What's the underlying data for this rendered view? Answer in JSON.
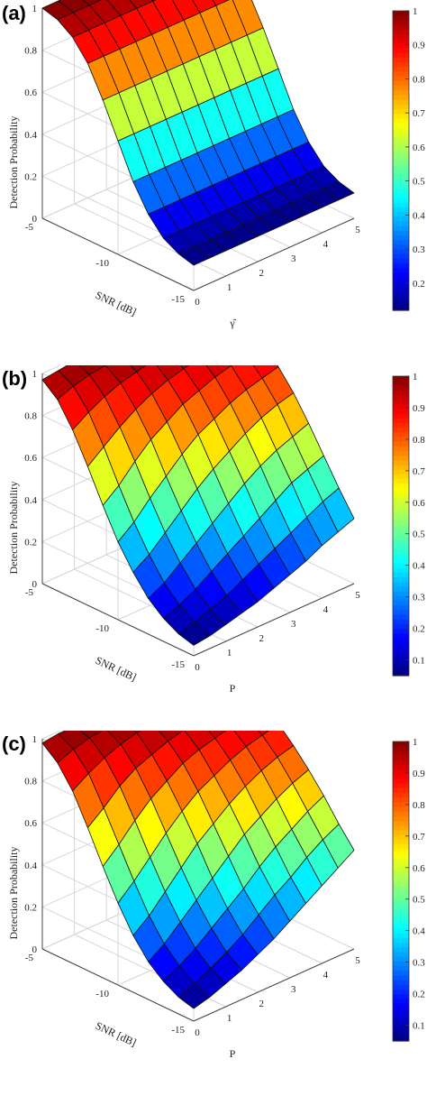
{
  "chart_data": [
    {
      "type": "surface3d",
      "panel_label": "(a)",
      "zlabel": "Detection Probability",
      "xlabel": "SNR [dB]",
      "ylabel": "γ̂",
      "x_ticks": [
        "-5",
        "-10",
        "-15"
      ],
      "y_ticks": [
        "0",
        "1",
        "2",
        "3",
        "4",
        "5"
      ],
      "z_ticks": [
        "0",
        "0.2",
        "0.4",
        "0.6",
        "0.8",
        "1"
      ],
      "xlim": [
        -15,
        -5
      ],
      "ylim": [
        0,
        5
      ],
      "zlim": [
        0,
        1
      ],
      "colorbar": {
        "min": 0.12,
        "max": 1.0,
        "ticks": [
          "1",
          "0.9",
          "0.8",
          "0.7",
          "0.6",
          "0.5",
          "0.4",
          "0.3",
          "0.2"
        ]
      },
      "snr": [
        -15,
        -14,
        -13,
        -12,
        -11,
        -10,
        -9,
        -8,
        -7,
        -6,
        -5
      ],
      "p": [
        0,
        0.5,
        1,
        1.5,
        2,
        2.5,
        3,
        3.5,
        4,
        4.5,
        5
      ],
      "z": [
        [
          0.12,
          0.12,
          0.12,
          0.12,
          0.12,
          0.12,
          0.12,
          0.12,
          0.12,
          0.12,
          0.12
        ],
        [
          0.14,
          0.14,
          0.14,
          0.14,
          0.14,
          0.14,
          0.14,
          0.14,
          0.14,
          0.14,
          0.14
        ],
        [
          0.18,
          0.18,
          0.18,
          0.18,
          0.18,
          0.18,
          0.18,
          0.18,
          0.18,
          0.18,
          0.18
        ],
        [
          0.26,
          0.26,
          0.26,
          0.26,
          0.26,
          0.26,
          0.26,
          0.26,
          0.26,
          0.26,
          0.26
        ],
        [
          0.38,
          0.38,
          0.38,
          0.38,
          0.38,
          0.38,
          0.38,
          0.38,
          0.38,
          0.38,
          0.38
        ],
        [
          0.54,
          0.54,
          0.54,
          0.54,
          0.54,
          0.54,
          0.54,
          0.54,
          0.54,
          0.54,
          0.54
        ],
        [
          0.7,
          0.7,
          0.7,
          0.7,
          0.7,
          0.7,
          0.7,
          0.7,
          0.7,
          0.7,
          0.7
        ],
        [
          0.84,
          0.84,
          0.84,
          0.84,
          0.84,
          0.84,
          0.84,
          0.84,
          0.84,
          0.84,
          0.84
        ],
        [
          0.93,
          0.93,
          0.93,
          0.93,
          0.93,
          0.93,
          0.93,
          0.93,
          0.93,
          0.93,
          0.93
        ],
        [
          0.98,
          0.98,
          0.98,
          0.98,
          0.98,
          0.98,
          0.98,
          0.98,
          0.98,
          0.98,
          0.98
        ],
        [
          1.0,
          1.0,
          1.0,
          1.0,
          1.0,
          1.0,
          1.0,
          1.0,
          1.0,
          1.0,
          1.0
        ]
      ]
    },
    {
      "type": "surface3d",
      "panel_label": "(b)",
      "zlabel": "Detection Probability",
      "xlabel": "SNR [dB]",
      "ylabel": "P",
      "x_ticks": [
        "-5",
        "-10",
        "-15"
      ],
      "y_ticks": [
        "0",
        "1",
        "2",
        "3",
        "4",
        "5"
      ],
      "z_ticks": [
        "0",
        "0.2",
        "0.4",
        "0.6",
        "0.8",
        "1"
      ],
      "xlim": [
        -15,
        -5
      ],
      "ylim": [
        0,
        5
      ],
      "zlim": [
        0,
        1
      ],
      "colorbar": {
        "min": 0.05,
        "max": 1.0,
        "ticks": [
          "1",
          "0.9",
          "0.8",
          "0.7",
          "0.6",
          "0.5",
          "0.4",
          "0.3",
          "0.2",
          "0.1"
        ]
      },
      "snr": [
        -15,
        -14,
        -13,
        -12,
        -11,
        -10,
        -9,
        -8,
        -7,
        -6,
        -5
      ],
      "p": [
        0,
        0.5,
        1,
        1.5,
        2,
        2.5,
        3,
        3.5,
        4,
        4.5,
        5
      ],
      "z": [
        [
          0.05,
          0.06,
          0.08,
          0.1,
          0.12,
          0.15,
          0.18,
          0.21,
          0.25,
          0.28,
          0.31
        ],
        [
          0.07,
          0.09,
          0.12,
          0.15,
          0.19,
          0.23,
          0.27,
          0.31,
          0.35,
          0.39,
          0.42
        ],
        [
          0.11,
          0.14,
          0.18,
          0.23,
          0.28,
          0.33,
          0.38,
          0.43,
          0.48,
          0.51,
          0.54
        ],
        [
          0.17,
          0.21,
          0.27,
          0.33,
          0.39,
          0.45,
          0.51,
          0.56,
          0.6,
          0.63,
          0.66
        ],
        [
          0.26,
          0.31,
          0.38,
          0.45,
          0.52,
          0.58,
          0.63,
          0.68,
          0.72,
          0.75,
          0.77
        ],
        [
          0.37,
          0.43,
          0.51,
          0.58,
          0.65,
          0.71,
          0.75,
          0.79,
          0.82,
          0.84,
          0.86
        ],
        [
          0.51,
          0.57,
          0.65,
          0.72,
          0.77,
          0.82,
          0.85,
          0.88,
          0.9,
          0.91,
          0.92
        ],
        [
          0.66,
          0.72,
          0.78,
          0.83,
          0.87,
          0.9,
          0.92,
          0.94,
          0.95,
          0.96,
          0.96
        ],
        [
          0.8,
          0.85,
          0.89,
          0.92,
          0.94,
          0.96,
          0.97,
          0.97,
          0.98,
          0.98,
          0.98
        ],
        [
          0.91,
          0.94,
          0.96,
          0.97,
          0.98,
          0.99,
          0.99,
          0.99,
          0.99,
          0.99,
          0.99
        ],
        [
          0.97,
          0.98,
          0.99,
          0.99,
          1.0,
          1.0,
          1.0,
          1.0,
          1.0,
          1.0,
          1.0
        ]
      ]
    },
    {
      "type": "surface3d",
      "panel_label": "(c)",
      "zlabel": "Detection Probability",
      "xlabel": "SNR [dB]",
      "ylabel": "P",
      "x_ticks": [
        "-5",
        "-10",
        "-15"
      ],
      "y_ticks": [
        "0",
        "1",
        "2",
        "3",
        "4",
        "5"
      ],
      "z_ticks": [
        "0",
        "0.2",
        "0.4",
        "0.6",
        "0.8",
        "1"
      ],
      "xlim": [
        -15,
        -5
      ],
      "ylim": [
        0,
        5
      ],
      "zlim": [
        0,
        1
      ],
      "colorbar": {
        "min": 0.05,
        "max": 1.0,
        "ticks": [
          "1",
          "0.9",
          "0.8",
          "0.7",
          "0.6",
          "0.5",
          "0.4",
          "0.3",
          "0.2",
          "0.1"
        ]
      },
      "snr": [
        -15,
        -14,
        -13,
        -12,
        -11,
        -10,
        -9,
        -8,
        -7,
        -6,
        -5
      ],
      "p": [
        0,
        0.5,
        1,
        1.5,
        2,
        2.5,
        3,
        3.5,
        4,
        4.5,
        5
      ],
      "z": [
        [
          0.06,
          0.08,
          0.11,
          0.14,
          0.18,
          0.22,
          0.27,
          0.32,
          0.37,
          0.42,
          0.47
        ],
        [
          0.08,
          0.11,
          0.15,
          0.19,
          0.24,
          0.3,
          0.36,
          0.41,
          0.47,
          0.52,
          0.56
        ],
        [
          0.12,
          0.16,
          0.21,
          0.27,
          0.33,
          0.39,
          0.46,
          0.52,
          0.57,
          0.62,
          0.66
        ],
        [
          0.18,
          0.23,
          0.3,
          0.37,
          0.44,
          0.51,
          0.58,
          0.63,
          0.68,
          0.72,
          0.75
        ],
        [
          0.27,
          0.33,
          0.41,
          0.49,
          0.57,
          0.63,
          0.69,
          0.74,
          0.78,
          0.81,
          0.83
        ],
        [
          0.39,
          0.46,
          0.54,
          0.62,
          0.69,
          0.75,
          0.79,
          0.83,
          0.86,
          0.88,
          0.9
        ],
        [
          0.53,
          0.6,
          0.68,
          0.75,
          0.8,
          0.85,
          0.88,
          0.9,
          0.92,
          0.93,
          0.94
        ],
        [
          0.68,
          0.74,
          0.81,
          0.86,
          0.89,
          0.92,
          0.94,
          0.95,
          0.96,
          0.97,
          0.97
        ],
        [
          0.82,
          0.87,
          0.91,
          0.94,
          0.96,
          0.97,
          0.98,
          0.98,
          0.99,
          0.99,
          0.99
        ],
        [
          0.92,
          0.95,
          0.97,
          0.98,
          0.99,
          0.99,
          0.99,
          1.0,
          1.0,
          1.0,
          1.0
        ],
        [
          0.98,
          0.99,
          0.99,
          1.0,
          1.0,
          1.0,
          1.0,
          1.0,
          1.0,
          1.0,
          1.0
        ]
      ]
    }
  ]
}
